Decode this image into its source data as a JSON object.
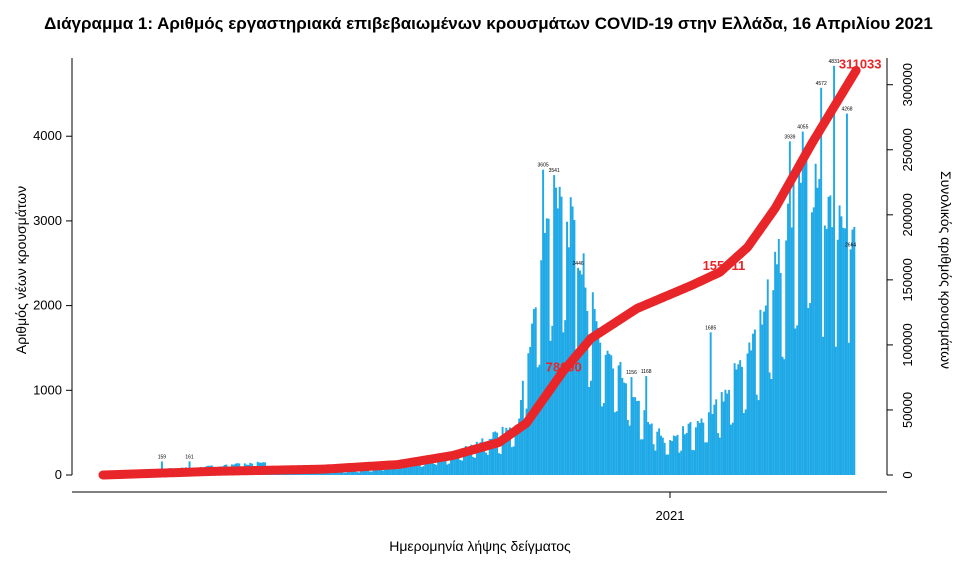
{
  "title": "Διάγραμμα 1: Αριθμός εργαστηριακά επιβεβαιωμένων κρουσμάτων COVID-19 στην Ελλάδα, 16 Απριλίου 2021",
  "chart_data": {
    "type": "bar",
    "title": "Διάγραμμα 1: Αριθμός εργαστηριακά επιβεβαιωμένων κρουσμάτων COVID-19 στην Ελλάδα, 16 Απριλίου 2021",
    "xlabel": "Ημερομηνία λήψης δείγματος",
    "ylabel": "Αριθμός νέων κρουσμάτων",
    "ylabel_right": "Συνολικός αριθμός κρουσμάτων",
    "x_tick_labels": [
      "2021"
    ],
    "ylim": [
      0,
      4900
    ],
    "ylim_right": [
      0,
      319000
    ],
    "y_ticks": [
      0,
      1000,
      2000,
      3000,
      4000
    ],
    "y_ticks_right": [
      0,
      50000,
      100000,
      150000,
      200000,
      250000,
      300000
    ],
    "grid": false,
    "colors": {
      "bars": "#1fa9e6",
      "cumulative": "#e8262a"
    },
    "series": [
      {
        "name": "",
        "kind": "bar",
        "axis": "left",
        "description": "Αριθμός νέων κρουσμάτων ανά ημέρα",
        "segments": [
          {
            "from_day": 0,
            "to_day": 90,
            "values": [
              20,
              150
            ]
          },
          {
            "from_day": 90,
            "to_day": 140,
            "values": [
              15,
              60
            ]
          },
          {
            "from_day": 140,
            "to_day": 190,
            "values": [
              60,
              250
            ]
          },
          {
            "from_day": 190,
            "to_day": 225,
            "values": [
              250,
              600
            ]
          },
          {
            "from_day": 225,
            "to_day": 246,
            "values": [
              600,
              3605
            ]
          },
          {
            "from_day": 246,
            "to_day": 270,
            "values": [
              3605,
              1600
            ]
          },
          {
            "from_day": 270,
            "to_day": 305,
            "values": [
              1600,
              400
            ]
          },
          {
            "from_day": 305,
            "to_day": 330,
            "values": [
              400,
              700
            ]
          },
          {
            "from_day": 330,
            "to_day": 355,
            "values": [
              700,
              1700
            ]
          },
          {
            "from_day": 355,
            "to_day": 380,
            "values": [
              1700,
              3500
            ]
          },
          {
            "from_day": 380,
            "to_day": 409,
            "values": [
              3500,
              2664
            ]
          }
        ],
        "labeled_points": [
          {
            "day": 32,
            "value": 159
          },
          {
            "day": 47,
            "value": 161
          },
          {
            "day": 239,
            "value": 3605
          },
          {
            "day": 245,
            "value": 3541
          },
          {
            "day": 258,
            "value": 2446
          },
          {
            "day": 287,
            "value": 1156
          },
          {
            "day": 295,
            "value": 1168
          },
          {
            "day": 330,
            "value": 1685
          },
          {
            "day": 373,
            "value": 3939
          },
          {
            "day": 380,
            "value": 4055
          },
          {
            "day": 390,
            "value": 4572
          },
          {
            "day": 397,
            "value": 4831
          },
          {
            "day": 404,
            "value": 4268
          },
          {
            "day": 406,
            "value": 2664
          }
        ]
      },
      {
        "name": "",
        "kind": "line",
        "axis": "right",
        "description": "Συνολικός αριθμός κρουσμάτων",
        "points": [
          {
            "day": 0,
            "value": 0
          },
          {
            "day": 60,
            "value": 2800
          },
          {
            "day": 120,
            "value": 4500
          },
          {
            "day": 160,
            "value": 8000
          },
          {
            "day": 190,
            "value": 15000
          },
          {
            "day": 215,
            "value": 25000
          },
          {
            "day": 230,
            "value": 40000
          },
          {
            "day": 240,
            "value": 60000
          },
          {
            "day": 250,
            "value": 80000
          },
          {
            "day": 265,
            "value": 105000
          },
          {
            "day": 290,
            "value": 128000
          },
          {
            "day": 320,
            "value": 146000
          },
          {
            "day": 335,
            "value": 155911
          },
          {
            "day": 350,
            "value": 175000
          },
          {
            "day": 365,
            "value": 205000
          },
          {
            "day": 385,
            "value": 255000
          },
          {
            "day": 409,
            "value": 311033
          }
        ],
        "labels": [
          {
            "day": 248,
            "value": 78000,
            "text": "78000"
          },
          {
            "day": 335,
            "value": 155911,
            "text": "155911"
          },
          {
            "day": 409,
            "value": 311033,
            "text": "311033"
          }
        ]
      }
    ],
    "annotations": [
      "78000",
      "155911",
      "311033"
    ]
  }
}
